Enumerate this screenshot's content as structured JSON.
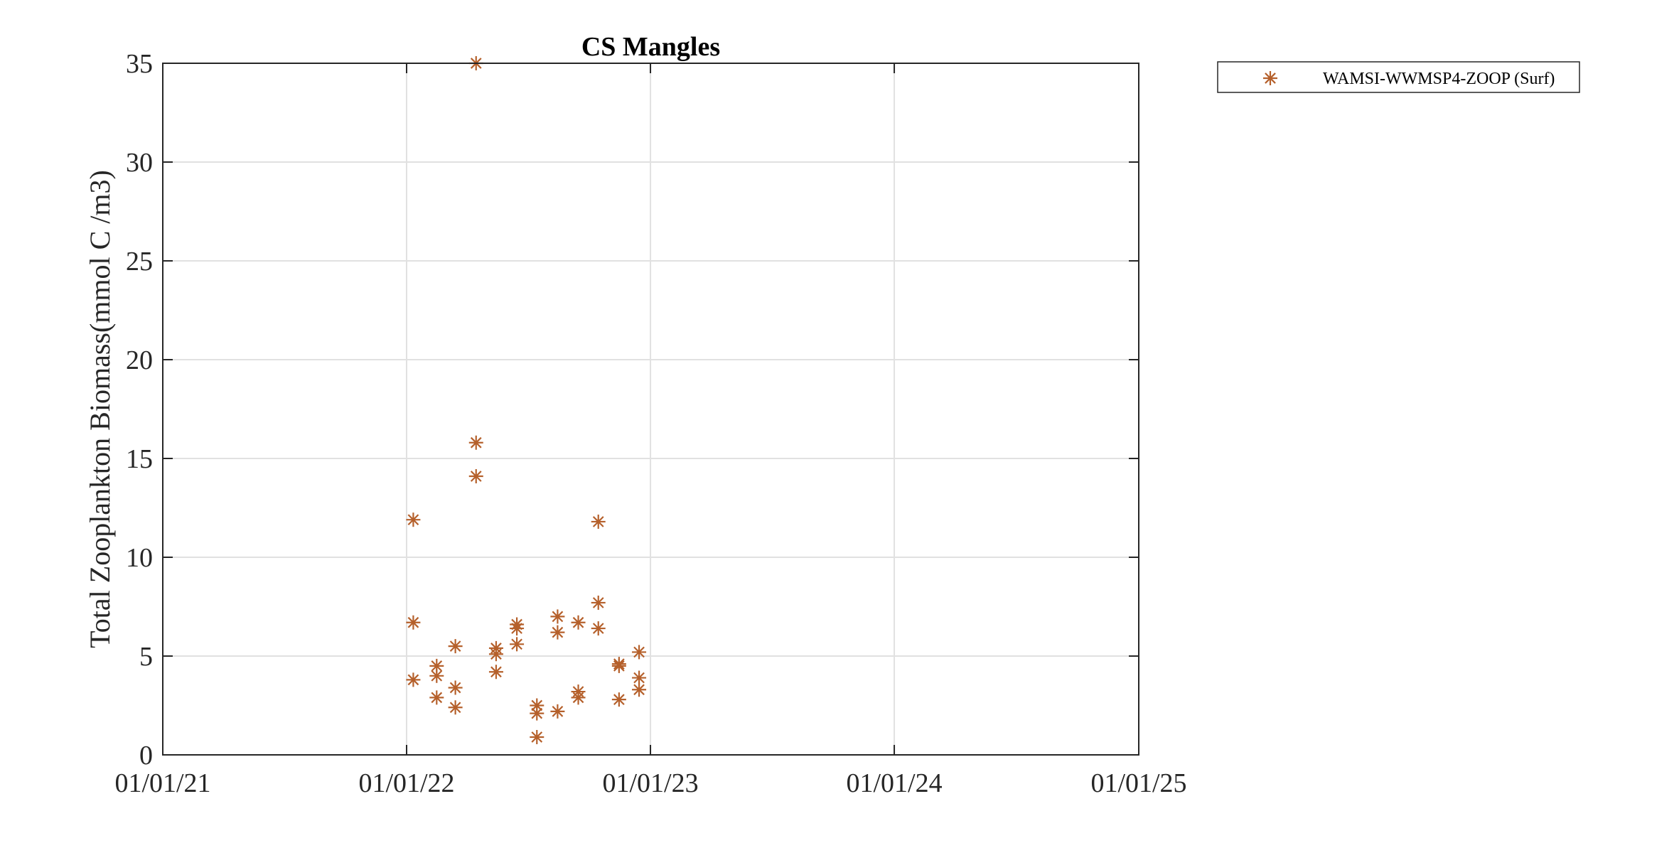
{
  "chart_data": {
    "type": "scatter",
    "title": "CS Mangles",
    "xlabel": "",
    "ylabel": "Total Zooplankton Biomass(mmol C /m3)",
    "xlim": [
      "2021-01-01",
      "2025-01-01"
    ],
    "ylim": [
      0,
      35
    ],
    "xticks": [
      {
        "date": "2021-01-01",
        "label": "01/01/21"
      },
      {
        "date": "2022-01-01",
        "label": "01/01/22"
      },
      {
        "date": "2023-01-01",
        "label": "01/01/23"
      },
      {
        "date": "2024-01-01",
        "label": "01/01/24"
      },
      {
        "date": "2025-01-01",
        "label": "01/01/25"
      }
    ],
    "yticks": [
      0,
      5,
      10,
      15,
      20,
      25,
      30,
      35
    ],
    "grid": true,
    "legend_position": "outside top-right",
    "series": [
      {
        "name": "WAMSI-WWMSP4-ZOOP (Surf)",
        "marker": "asterisk",
        "color": "#b5602b",
        "points": [
          {
            "x": "2022-01-11",
            "y": 11.9
          },
          {
            "x": "2022-01-11",
            "y": 6.7
          },
          {
            "x": "2022-01-11",
            "y": 3.8
          },
          {
            "x": "2022-02-15",
            "y": 4.5
          },
          {
            "x": "2022-02-15",
            "y": 4.0
          },
          {
            "x": "2022-02-15",
            "y": 2.9
          },
          {
            "x": "2022-03-15",
            "y": 5.5
          },
          {
            "x": "2022-03-15",
            "y": 3.4
          },
          {
            "x": "2022-03-15",
            "y": 2.4
          },
          {
            "x": "2022-04-15",
            "y": 35.0
          },
          {
            "x": "2022-04-15",
            "y": 15.8
          },
          {
            "x": "2022-04-15",
            "y": 14.1
          },
          {
            "x": "2022-05-15",
            "y": 5.4
          },
          {
            "x": "2022-05-15",
            "y": 5.1
          },
          {
            "x": "2022-05-15",
            "y": 4.2
          },
          {
            "x": "2022-06-15",
            "y": 6.6
          },
          {
            "x": "2022-06-15",
            "y": 6.4
          },
          {
            "x": "2022-06-15",
            "y": 5.6
          },
          {
            "x": "2022-07-15",
            "y": 2.5
          },
          {
            "x": "2022-07-15",
            "y": 2.1
          },
          {
            "x": "2022-07-15",
            "y": 0.9
          },
          {
            "x": "2022-08-15",
            "y": 7.0
          },
          {
            "x": "2022-08-15",
            "y": 6.2
          },
          {
            "x": "2022-08-15",
            "y": 2.2
          },
          {
            "x": "2022-09-15",
            "y": 6.7
          },
          {
            "x": "2022-09-15",
            "y": 3.2
          },
          {
            "x": "2022-09-15",
            "y": 2.9
          },
          {
            "x": "2022-10-15",
            "y": 11.8
          },
          {
            "x": "2022-10-15",
            "y": 7.7
          },
          {
            "x": "2022-10-15",
            "y": 6.4
          },
          {
            "x": "2022-11-15",
            "y": 4.6
          },
          {
            "x": "2022-11-15",
            "y": 4.5
          },
          {
            "x": "2022-11-15",
            "y": 2.8
          },
          {
            "x": "2022-12-15",
            "y": 5.2
          },
          {
            "x": "2022-12-15",
            "y": 3.9
          },
          {
            "x": "2022-12-15",
            "y": 3.3
          }
        ]
      }
    ]
  }
}
